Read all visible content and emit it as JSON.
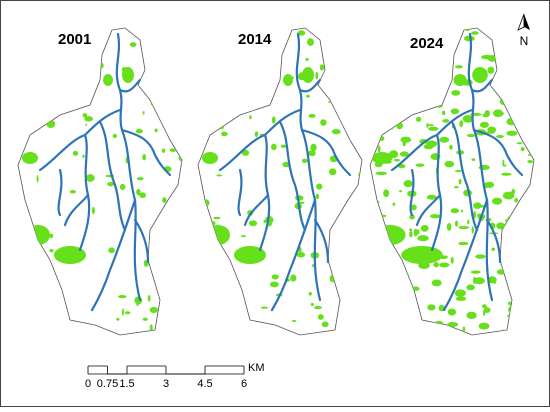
{
  "panels": [
    {
      "year": "2001"
    },
    {
      "year": "2014"
    },
    {
      "year": "2024"
    }
  ],
  "north_arrow": {
    "label": "N"
  },
  "scale_bar": {
    "ticks": [
      0,
      0.75,
      1.5,
      3,
      4.5,
      6
    ],
    "unit": "KM"
  }
}
